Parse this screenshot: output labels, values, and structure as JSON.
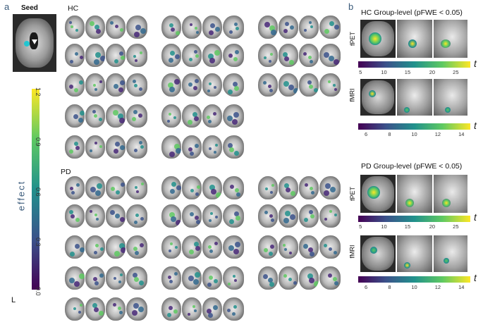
{
  "panel_a": {
    "letter": "a",
    "seed_label": "Seed",
    "hc_label": "HC",
    "pd_label": "PD",
    "effect_label": "effect",
    "hemisphere_label": "L",
    "colorbar_ticks": [
      "0.0",
      "0.3",
      "0.6",
      "0.9",
      "1.2"
    ]
  },
  "panel_b": {
    "letter": "b",
    "hc_title": "HC Group-level (pFWE < 0.05)",
    "pd_title": "PD Group-level (pFWE < 0.05)",
    "fpet_label": "fPET",
    "fmri_label": "fMRI",
    "t_symbol": "t",
    "hc_fpet_ticks": [
      "5",
      "10",
      "15",
      "20",
      "25"
    ],
    "hc_fmri_ticks": [
      "6",
      "8",
      "10",
      "12",
      "14"
    ],
    "pd_fpet_ticks": [
      "5",
      "10",
      "15",
      "20",
      "25"
    ],
    "pd_fmri_ticks": [
      "6",
      "8",
      "10",
      "12",
      "14"
    ]
  },
  "colors": {
    "viridis_low": "#440154",
    "viridis_mid": "#21918c",
    "viridis_high": "#fde725",
    "panel_letter": "#3a5a7a"
  }
}
